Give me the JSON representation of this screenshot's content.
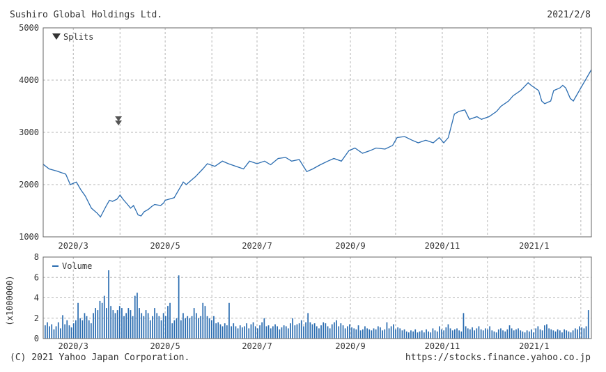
{
  "header": {
    "company": "Sushiro Global Holdings Ltd.",
    "date": "2021/2/8"
  },
  "footer": {
    "copyright": "(C) 2021 Yahoo Japan Corporation.",
    "url": "https://stocks.finance.yahoo.co.jp"
  },
  "colors": {
    "line": "#2a6cb0",
    "bar": "#2a6cb0",
    "grid": "#b5b5b5",
    "frame": "#666666",
    "marker": "#555555"
  },
  "chart_data": [
    {
      "type": "line",
      "title": "Sushiro Global Holdings Ltd.",
      "legend": {
        "label": "Splits",
        "icon": "down-triangle-icon",
        "placement": "top-left"
      },
      "x_range": [
        "2020-02-10",
        "2021-02-08"
      ],
      "x_tick_labels": [
        {
          "date": "2020-03-01",
          "label": "2020/3"
        },
        {
          "date": "2020-05-01",
          "label": "2020/5"
        },
        {
          "date": "2020-07-01",
          "label": "2020/7"
        },
        {
          "date": "2020-09-01",
          "label": "2020/9"
        },
        {
          "date": "2020-11-01",
          "label": "2020/11"
        },
        {
          "date": "2021-01-01",
          "label": "2021/1"
        }
      ],
      "ylim": [
        1000,
        5000
      ],
      "y_ticks": [
        1000,
        2000,
        3000,
        4000,
        5000
      ],
      "grid": true,
      "split_markers": [
        {
          "date": "2020-03-31",
          "value": 3200
        }
      ],
      "series": [
        {
          "values": [
            [
              "2020-02-10",
              2390
            ],
            [
              "2020-02-14",
              2300
            ],
            [
              "2020-02-19",
              2260
            ],
            [
              "2020-02-25",
              2200
            ],
            [
              "2020-02-28",
              2000
            ],
            [
              "2020-03-03",
              2050
            ],
            [
              "2020-03-06",
              1900
            ],
            [
              "2020-03-09",
              1780
            ],
            [
              "2020-03-13",
              1550
            ],
            [
              "2020-03-17",
              1450
            ],
            [
              "2020-03-19",
              1380
            ],
            [
              "2020-03-23",
              1600
            ],
            [
              "2020-03-25",
              1700
            ],
            [
              "2020-03-27",
              1680
            ],
            [
              "2020-03-30",
              1720
            ],
            [
              "2020-04-01",
              1800
            ],
            [
              "2020-04-03",
              1720
            ],
            [
              "2020-04-06",
              1620
            ],
            [
              "2020-04-08",
              1550
            ],
            [
              "2020-04-10",
              1600
            ],
            [
              "2020-04-13",
              1420
            ],
            [
              "2020-04-15",
              1400
            ],
            [
              "2020-04-17",
              1480
            ],
            [
              "2020-04-20",
              1530
            ],
            [
              "2020-04-22",
              1580
            ],
            [
              "2020-04-24",
              1620
            ],
            [
              "2020-04-28",
              1600
            ],
            [
              "2020-04-30",
              1650
            ],
            [
              "2020-05-01",
              1700
            ],
            [
              "2020-05-07",
              1750
            ],
            [
              "2020-05-11",
              1950
            ],
            [
              "2020-05-13",
              2050
            ],
            [
              "2020-05-15",
              2000
            ],
            [
              "2020-05-19",
              2100
            ],
            [
              "2020-05-21",
              2150
            ],
            [
              "2020-05-26",
              2300
            ],
            [
              "2020-05-29",
              2400
            ],
            [
              "2020-06-03",
              2350
            ],
            [
              "2020-06-08",
              2450
            ],
            [
              "2020-06-12",
              2400
            ],
            [
              "2020-06-17",
              2350
            ],
            [
              "2020-06-22",
              2300
            ],
            [
              "2020-06-26",
              2450
            ],
            [
              "2020-07-01",
              2400
            ],
            [
              "2020-07-06",
              2450
            ],
            [
              "2020-07-10",
              2380
            ],
            [
              "2020-07-15",
              2500
            ],
            [
              "2020-07-20",
              2520
            ],
            [
              "2020-07-24",
              2450
            ],
            [
              "2020-07-29",
              2480
            ],
            [
              "2020-08-03",
              2250
            ],
            [
              "2020-08-07",
              2300
            ],
            [
              "2020-08-12",
              2380
            ],
            [
              "2020-08-17",
              2450
            ],
            [
              "2020-08-21",
              2500
            ],
            [
              "2020-08-26",
              2450
            ],
            [
              "2020-08-31",
              2650
            ],
            [
              "2020-09-04",
              2700
            ],
            [
              "2020-09-09",
              2600
            ],
            [
              "2020-09-14",
              2650
            ],
            [
              "2020-09-18",
              2700
            ],
            [
              "2020-09-24",
              2680
            ],
            [
              "2020-09-29",
              2750
            ],
            [
              "2020-10-02",
              2900
            ],
            [
              "2020-10-07",
              2920
            ],
            [
              "2020-10-12",
              2850
            ],
            [
              "2020-10-16",
              2800
            ],
            [
              "2020-10-21",
              2850
            ],
            [
              "2020-10-26",
              2800
            ],
            [
              "2020-10-30",
              2900
            ],
            [
              "2020-11-02",
              2800
            ],
            [
              "2020-11-05",
              2900
            ],
            [
              "2020-11-09",
              3350
            ],
            [
              "2020-11-12",
              3400
            ],
            [
              "2020-11-16",
              3430
            ],
            [
              "2020-11-19",
              3250
            ],
            [
              "2020-11-24",
              3300
            ],
            [
              "2020-11-27",
              3250
            ],
            [
              "2020-12-02",
              3300
            ],
            [
              "2020-12-07",
              3400
            ],
            [
              "2020-12-10",
              3500
            ],
            [
              "2020-12-15",
              3600
            ],
            [
              "2020-12-18",
              3700
            ],
            [
              "2020-12-23",
              3800
            ],
            [
              "2020-12-28",
              3950
            ],
            [
              "2020-12-30",
              3900
            ],
            [
              "2021-01-04",
              3800
            ],
            [
              "2021-01-06",
              3600
            ],
            [
              "2021-01-08",
              3550
            ],
            [
              "2021-01-12",
              3600
            ],
            [
              "2021-01-14",
              3800
            ],
            [
              "2021-01-18",
              3850
            ],
            [
              "2021-01-20",
              3900
            ],
            [
              "2021-01-22",
              3850
            ],
            [
              "2021-01-25",
              3650
            ],
            [
              "2021-01-27",
              3600
            ],
            [
              "2021-01-29",
              3700
            ],
            [
              "2021-02-02",
              3900
            ],
            [
              "2021-02-04",
              4000
            ],
            [
              "2021-02-08",
              4200
            ]
          ]
        }
      ]
    },
    {
      "type": "bar",
      "legend": {
        "label": "Volume",
        "placement": "top-left"
      },
      "ylabel": "(x1000000)",
      "ylim": [
        0,
        8
      ],
      "y_ticks": [
        0,
        2,
        4,
        6,
        8
      ],
      "x_tick_labels": [
        "2020/3",
        "2020/5",
        "2020/7",
        "2020/9",
        "2020/11",
        "2021/1"
      ],
      "grid": true,
      "series": [
        {
          "values": [
            1.3,
            1.6,
            1.2,
            1.4,
            0.9,
            1.2,
            1.6,
            1.0,
            2.3,
            1.4,
            1.8,
            1.3,
            1.1,
            1.5,
            1.8,
            3.5,
            2.0,
            1.8,
            2.5,
            2.2,
            1.8,
            1.5,
            2.5,
            3.0,
            2.8,
            3.7,
            3.5,
            4.2,
            3.0,
            6.7,
            3.2,
            2.8,
            2.5,
            2.8,
            3.2,
            3.0,
            2.2,
            2.5,
            3.0,
            2.8,
            2.2,
            4.2,
            4.5,
            3.0,
            2.5,
            2.2,
            2.8,
            2.5,
            1.8,
            2.2,
            3.0,
            2.5,
            2.2,
            1.8,
            2.5,
            2.2,
            3.2,
            3.5,
            1.5,
            1.8,
            2.0,
            6.2,
            1.8,
            2.5,
            2.0,
            2.2,
            2.0,
            2.2,
            3.0,
            2.5,
            2.0,
            2.2,
            3.5,
            3.2,
            2.2,
            2.0,
            1.8,
            2.2,
            1.5,
            1.6,
            1.4,
            1.2,
            1.5,
            1.3,
            3.5,
            1.2,
            1.5,
            1.2,
            1.0,
            1.3,
            1.1,
            1.2,
            1.5,
            1.0,
            1.4,
            1.6,
            1.2,
            1.0,
            1.3,
            1.6,
            2.0,
            1.2,
            1.3,
            1.0,
            1.2,
            1.4,
            1.2,
            0.9,
            1.1,
            1.3,
            1.2,
            1.0,
            1.5,
            2.0,
            1.3,
            1.4,
            1.5,
            1.8,
            1.2,
            1.6,
            2.5,
            1.6,
            1.4,
            1.5,
            1.2,
            1.0,
            1.3,
            1.6,
            1.5,
            1.2,
            1.0,
            1.4,
            1.6,
            1.8,
            1.2,
            1.5,
            1.3,
            1.0,
            1.2,
            1.4,
            1.1,
            1.0,
            0.9,
            1.3,
            0.8,
            0.9,
            1.2,
            1.0,
            0.9,
            0.8,
            1.0,
            0.9,
            1.2,
            1.1,
            0.8,
            0.9,
            1.6,
            1.0,
            1.2,
            1.4,
            0.9,
            1.1,
            1.0,
            0.8,
            0.9,
            0.7,
            0.6,
            0.8,
            0.7,
            0.9,
            0.6,
            0.7,
            0.8,
            0.6,
            0.9,
            0.7,
            0.6,
            1.0,
            0.8,
            0.7,
            1.2,
            0.9,
            0.8,
            1.1,
            1.4,
            1.0,
            0.8,
            0.9,
            1.0,
            0.8,
            0.7,
            2.5,
            1.2,
            1.0,
            0.9,
            1.1,
            0.8,
            1.0,
            1.2,
            0.9,
            0.8,
            1.0,
            0.9,
            1.2,
            0.8,
            0.7,
            0.6,
            0.9,
            1.0,
            0.8,
            0.7,
            0.9,
            1.3,
            1.0,
            0.8,
            0.9,
            1.0,
            0.8,
            0.7,
            0.6,
            0.8,
            0.7,
            0.9,
            0.6,
            1.0,
            1.2,
            0.9,
            0.8,
            1.3,
            1.4,
            1.0,
            0.9,
            0.8,
            0.7,
            0.9,
            0.8,
            0.6,
            0.9,
            0.8,
            0.7,
            0.6,
            0.8,
            1.0,
            0.9,
            1.2,
            1.1,
            1.0,
            1.2,
            2.8
          ]
        }
      ]
    }
  ]
}
